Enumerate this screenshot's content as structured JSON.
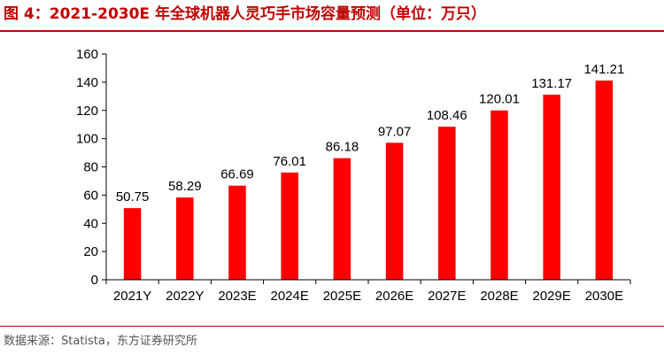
{
  "header": {
    "title": "图 4：2021-2030E 年全球机器人灵巧手市场容量预测（单位：万只）"
  },
  "footer": {
    "source": "数据来源：Statista，东方证券研究所"
  },
  "colors": {
    "title": "#c00000",
    "bar": "#ff0000",
    "axis": "#000000"
  },
  "chart_data": {
    "type": "bar",
    "title": "2021-2030E 年全球机器人灵巧手市场容量预测（单位：万只）",
    "xlabel": "",
    "ylabel": "",
    "ylim": [
      0,
      160
    ],
    "yticks": [
      0,
      20,
      40,
      60,
      80,
      100,
      120,
      140,
      160
    ],
    "categories": [
      "2021Y",
      "2022Y",
      "2023E",
      "2024E",
      "2025E",
      "2026E",
      "2027E",
      "2028E",
      "2029E",
      "2030E"
    ],
    "values": [
      50.75,
      58.29,
      66.69,
      76.01,
      86.18,
      97.07,
      108.46,
      120.01,
      131.17,
      141.21
    ],
    "data_labels": [
      "50.75",
      "58.29",
      "66.69",
      "76.01",
      "86.18",
      "97.07",
      "108.46",
      "120.01",
      "131.17",
      "141.21"
    ],
    "grid": false,
    "legend": "none"
  }
}
